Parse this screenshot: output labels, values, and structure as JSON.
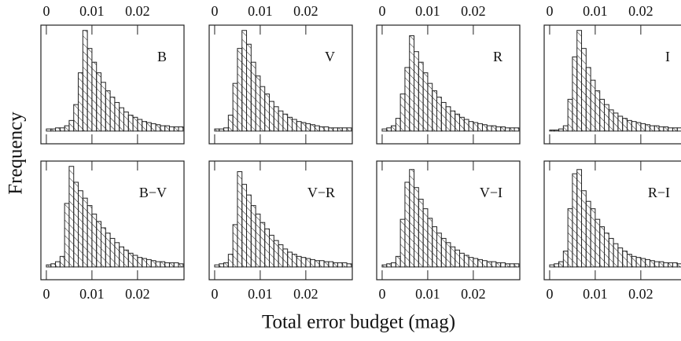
{
  "xlabel": "Total error budget (mag)",
  "ylabel": "Frequency",
  "chart_data": [
    {
      "type": "histogram",
      "label": "B",
      "tick_labels": "top",
      "bins": [
        0,
        0.001,
        0.002,
        0.003,
        0.004,
        0.005,
        0.006,
        0.007,
        0.008,
        0.009,
        0.01,
        0.011,
        0.012,
        0.013,
        0.014,
        0.015,
        0.016,
        0.017,
        0.018,
        0.019,
        0.02,
        0.021,
        0.022,
        0.023,
        0.024,
        0.025,
        0.026,
        0.027,
        0.028,
        0.029,
        0.03
      ],
      "values": [
        2,
        2,
        3,
        3,
        5,
        10,
        25,
        55,
        95,
        78,
        65,
        55,
        46,
        38,
        32,
        27,
        22,
        18,
        15,
        13,
        11,
        9,
        8,
        7,
        6,
        5,
        5,
        4,
        4,
        4
      ],
      "xlim": [
        -0.0012,
        0.0302
      ],
      "ylim": [
        -12,
        100
      ],
      "xticks": [
        0,
        0.01,
        0.02
      ],
      "color": "#222"
    },
    {
      "type": "histogram",
      "label": "V",
      "tick_labels": "top",
      "bins": [
        0,
        0.001,
        0.002,
        0.003,
        0.004,
        0.005,
        0.006,
        0.007,
        0.008,
        0.009,
        0.01,
        0.011,
        0.012,
        0.013,
        0.014,
        0.015,
        0.016,
        0.017,
        0.018,
        0.019,
        0.02,
        0.021,
        0.022,
        0.023,
        0.024,
        0.025,
        0.026,
        0.027,
        0.028,
        0.029,
        0.03
      ],
      "values": [
        2,
        2,
        3,
        15,
        45,
        78,
        95,
        82,
        65,
        52,
        42,
        35,
        28,
        23,
        19,
        16,
        13,
        11,
        9,
        8,
        7,
        6,
        5,
        4,
        4,
        3,
        3,
        3,
        3,
        3
      ],
      "xlim": [
        -0.0012,
        0.0302
      ],
      "ylim": [
        -12,
        100
      ],
      "xticks": [
        0,
        0.01,
        0.02
      ],
      "color": "#222"
    },
    {
      "type": "histogram",
      "label": "R",
      "tick_labels": "top",
      "bins": [
        0,
        0.001,
        0.002,
        0.003,
        0.004,
        0.005,
        0.006,
        0.007,
        0.008,
        0.009,
        0.01,
        0.011,
        0.012,
        0.013,
        0.014,
        0.015,
        0.016,
        0.017,
        0.018,
        0.019,
        0.02,
        0.021,
        0.022,
        0.023,
        0.024,
        0.025,
        0.026,
        0.027,
        0.028,
        0.029,
        0.03
      ],
      "values": [
        2,
        3,
        5,
        12,
        35,
        60,
        90,
        75,
        65,
        55,
        45,
        38,
        32,
        27,
        23,
        19,
        16,
        13,
        11,
        9,
        8,
        7,
        6,
        5,
        5,
        4,
        4,
        3,
        3,
        3
      ],
      "xlim": [
        -0.0012,
        0.0302
      ],
      "ylim": [
        -12,
        100
      ],
      "xticks": [
        0,
        0.01,
        0.02
      ],
      "color": "#222"
    },
    {
      "type": "histogram",
      "label": "I",
      "tick_labels": "top",
      "bins": [
        0,
        0.001,
        0.002,
        0.003,
        0.004,
        0.005,
        0.006,
        0.007,
        0.008,
        0.009,
        0.01,
        0.011,
        0.012,
        0.013,
        0.014,
        0.015,
        0.016,
        0.017,
        0.018,
        0.019,
        0.02,
        0.021,
        0.022,
        0.023,
        0.024,
        0.025,
        0.026,
        0.027,
        0.028,
        0.029,
        0.03
      ],
      "values": [
        1,
        1,
        2,
        5,
        30,
        70,
        95,
        78,
        60,
        48,
        38,
        30,
        25,
        20,
        17,
        14,
        12,
        10,
        9,
        8,
        7,
        6,
        5,
        5,
        4,
        4,
        3,
        3,
        3,
        3
      ],
      "xlim": [
        -0.0012,
        0.0302
      ],
      "ylim": [
        -12,
        100
      ],
      "xticks": [
        0,
        0.01,
        0.02
      ],
      "color": "#222"
    },
    {
      "type": "histogram",
      "label": "B−V",
      "tick_labels": "bottom",
      "bins": [
        0,
        0.001,
        0.002,
        0.003,
        0.004,
        0.005,
        0.006,
        0.007,
        0.008,
        0.009,
        0.01,
        0.011,
        0.012,
        0.013,
        0.014,
        0.015,
        0.016,
        0.017,
        0.018,
        0.019,
        0.02,
        0.021,
        0.022,
        0.023,
        0.024,
        0.025,
        0.026,
        0.027,
        0.028,
        0.029,
        0.03
      ],
      "values": [
        2,
        3,
        5,
        10,
        60,
        95,
        80,
        72,
        65,
        58,
        50,
        43,
        37,
        32,
        27,
        23,
        19,
        16,
        13,
        11,
        9,
        8,
        7,
        6,
        5,
        5,
        4,
        4,
        4,
        3
      ],
      "xlim": [
        -0.0012,
        0.0302
      ],
      "ylim": [
        -12,
        100
      ],
      "xticks": [
        0,
        0.01,
        0.02
      ],
      "color": "#222"
    },
    {
      "type": "histogram",
      "label": "V−R",
      "tick_labels": "bottom",
      "bins": [
        0,
        0.001,
        0.002,
        0.003,
        0.004,
        0.005,
        0.006,
        0.007,
        0.008,
        0.009,
        0.01,
        0.011,
        0.012,
        0.013,
        0.014,
        0.015,
        0.016,
        0.017,
        0.018,
        0.019,
        0.02,
        0.021,
        0.022,
        0.023,
        0.024,
        0.025,
        0.026,
        0.027,
        0.028,
        0.029,
        0.03
      ],
      "values": [
        2,
        3,
        4,
        12,
        40,
        90,
        78,
        68,
        58,
        50,
        42,
        36,
        30,
        25,
        21,
        17,
        14,
        12,
        10,
        9,
        8,
        7,
        6,
        6,
        5,
        5,
        4,
        4,
        4,
        3
      ],
      "xlim": [
        -0.0012,
        0.0302
      ],
      "ylim": [
        -12,
        100
      ],
      "xticks": [
        0,
        0.01,
        0.02
      ],
      "color": "#222"
    },
    {
      "type": "histogram",
      "label": "V−I",
      "tick_labels": "bottom",
      "bins": [
        0,
        0.001,
        0.002,
        0.003,
        0.004,
        0.005,
        0.006,
        0.007,
        0.008,
        0.009,
        0.01,
        0.011,
        0.012,
        0.013,
        0.014,
        0.015,
        0.016,
        0.017,
        0.018,
        0.019,
        0.02,
        0.021,
        0.022,
        0.023,
        0.024,
        0.025,
        0.026,
        0.027,
        0.028,
        0.029,
        0.03
      ],
      "values": [
        2,
        3,
        4,
        10,
        45,
        80,
        92,
        75,
        64,
        55,
        46,
        38,
        32,
        27,
        23,
        19,
        16,
        13,
        11,
        9,
        8,
        7,
        6,
        5,
        5,
        4,
        4,
        3,
        3,
        3
      ],
      "xlim": [
        -0.0012,
        0.0302
      ],
      "ylim": [
        -12,
        100
      ],
      "xticks": [
        0,
        0.01,
        0.02
      ],
      "color": "#222"
    },
    {
      "type": "histogram",
      "label": "R−I",
      "tick_labels": "bottom",
      "bins": [
        0,
        0.001,
        0.002,
        0.003,
        0.004,
        0.005,
        0.006,
        0.007,
        0.008,
        0.009,
        0.01,
        0.011,
        0.012,
        0.013,
        0.014,
        0.015,
        0.016,
        0.017,
        0.018,
        0.019,
        0.02,
        0.021,
        0.022,
        0.023,
        0.024,
        0.025,
        0.026,
        0.027,
        0.028,
        0.029,
        0.03
      ],
      "values": [
        2,
        3,
        5,
        15,
        55,
        88,
        92,
        72,
        62,
        55,
        45,
        38,
        32,
        27,
        22,
        18,
        15,
        12,
        10,
        9,
        8,
        7,
        6,
        5,
        5,
        4,
        4,
        4,
        3,
        3
      ],
      "xlim": [
        -0.0012,
        0.0302
      ],
      "ylim": [
        -12,
        100
      ],
      "xticks": [
        0,
        0.01,
        0.02
      ],
      "color": "#222"
    }
  ]
}
